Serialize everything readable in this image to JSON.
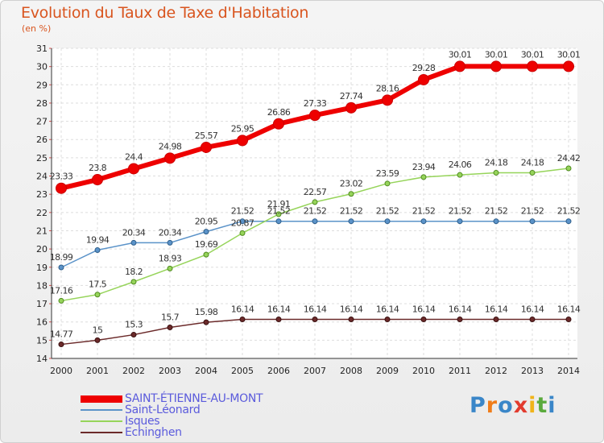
{
  "title": "Evolution du Taux de Taxe d'Habitation",
  "subtitle": "(en %)",
  "logo": {
    "letters": [
      "P",
      "r",
      "o",
      "x",
      "i",
      "t",
      "i"
    ],
    "colors": [
      "#3a86c8",
      "#f07d1a",
      "#3a86c8",
      "#e23b2e",
      "#f0b31a",
      "#5aaa3c",
      "#3a86c8"
    ]
  },
  "chart_data": {
    "type": "line",
    "x": [
      2000,
      2001,
      2002,
      2003,
      2004,
      2005,
      2006,
      2007,
      2008,
      2009,
      2010,
      2011,
      2012,
      2013,
      2014
    ],
    "ylim": [
      14,
      31
    ],
    "yticks": [
      14,
      15,
      16,
      17,
      18,
      19,
      20,
      21,
      22,
      23,
      24,
      25,
      26,
      27,
      28,
      29,
      30,
      31
    ],
    "grid": true,
    "legend_position": "bottom-left",
    "series": [
      {
        "name": "SAINT-ÉTIENNE-AU-MONT",
        "color": "#ee0000",
        "values": [
          23.33,
          23.8,
          24.4,
          24.98,
          25.57,
          25.95,
          26.86,
          27.33,
          27.74,
          28.16,
          29.28,
          30.01,
          30.01,
          30.01,
          30.01
        ],
        "labels": [
          "23.33",
          "23.8",
          "24.4",
          "24.98",
          "25.57",
          "25.95",
          "26.86",
          "27.33",
          "27.74",
          "28.16",
          "29.28",
          "30.01",
          "30.01",
          "30.01",
          "30.01"
        ]
      },
      {
        "name": "Saint-Léonard",
        "color": "#5b93c9",
        "values": [
          18.99,
          19.94,
          20.34,
          20.34,
          20.95,
          21.52,
          21.52,
          21.52,
          21.52,
          21.52,
          21.52,
          21.52,
          21.52,
          21.52,
          21.52
        ],
        "labels": [
          "18.99",
          "19.94",
          "20.34",
          "20.34",
          "20.95",
          "21.52",
          "21.52",
          "21.52",
          "21.52",
          "21.52",
          "21.52",
          "21.52",
          "21.52",
          "21.52",
          "21.52"
        ]
      },
      {
        "name": "Isques",
        "color": "#96d45a",
        "values": [
          17.16,
          17.5,
          18.2,
          18.93,
          19.69,
          20.87,
          21.91,
          22.57,
          23.02,
          23.59,
          23.94,
          24.06,
          24.18,
          24.18,
          24.42
        ],
        "labels": [
          "17.16",
          "17.5",
          "18.2",
          "18.93",
          "19.69",
          "20.87",
          "21.91",
          "22.57",
          "23.02",
          "23.59",
          "23.94",
          "24.06",
          "24.18",
          "24.18",
          "24.42"
        ]
      },
      {
        "name": "Echinghen",
        "color": "#6b2a2a",
        "values": [
          14.77,
          15,
          15.3,
          15.7,
          15.98,
          16.14,
          16.14,
          16.14,
          16.14,
          16.14,
          16.14,
          16.14,
          16.14,
          16.14,
          16.14
        ],
        "labels": [
          "14.77",
          "15",
          "15.3",
          "15.7",
          "15.98",
          "16.14",
          "16.14",
          "16.14",
          "16.14",
          "16.14",
          "16.14",
          "16.14",
          "16.14",
          "16.14",
          "16.14"
        ]
      }
    ]
  }
}
